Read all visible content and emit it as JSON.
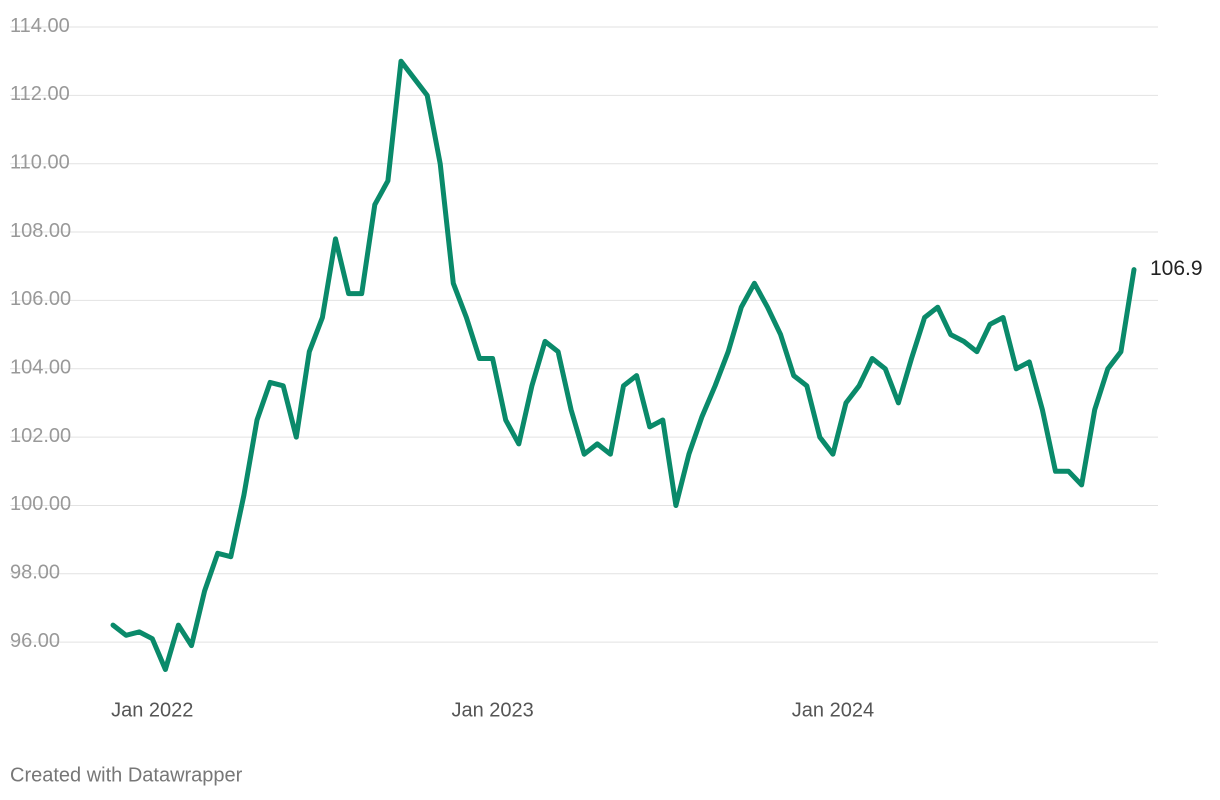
{
  "chart_data": {
    "type": "line",
    "categories": [
      null,
      null,
      null,
      "Jan 2022",
      null,
      null,
      null,
      null,
      null,
      null,
      null,
      null,
      null,
      null,
      null,
      null,
      null,
      null,
      null,
      null,
      null,
      null,
      null,
      null,
      null,
      null,
      null,
      null,
      null,
      "Jan 2023",
      null,
      null,
      null,
      null,
      null,
      null,
      null,
      null,
      null,
      null,
      null,
      null,
      null,
      null,
      null,
      null,
      null,
      null,
      null,
      null,
      null,
      null,
      null,
      null,
      null,
      "Jan 2024",
      null,
      null,
      null,
      null,
      null,
      null,
      null,
      null,
      null,
      null,
      null,
      null,
      null,
      null,
      null,
      null,
      null,
      null,
      null,
      null,
      null,
      null,
      null
    ],
    "values": [
      96.5,
      96.2,
      96.3,
      96.1,
      95.2,
      96.5,
      95.9,
      97.5,
      98.6,
      98.5,
      100.3,
      102.5,
      103.6,
      103.5,
      102.0,
      104.5,
      105.5,
      107.8,
      106.2,
      106.2,
      108.8,
      109.5,
      113.0,
      112.5,
      112.0,
      110.0,
      106.5,
      105.5,
      104.3,
      104.3,
      102.5,
      101.8,
      103.5,
      104.8,
      104.5,
      102.8,
      101.5,
      101.8,
      101.5,
      103.5,
      103.8,
      102.3,
      102.5,
      100.0,
      101.5,
      102.6,
      103.5,
      104.5,
      105.8,
      106.5,
      105.8,
      105.0,
      103.8,
      103.5,
      102.0,
      101.5,
      103.0,
      103.5,
      104.3,
      104.0,
      103.0,
      104.3,
      105.5,
      105.8,
      105.0,
      104.8,
      104.5,
      105.3,
      105.5,
      104.0,
      104.2,
      102.8,
      101.0,
      101.0,
      100.6,
      102.8,
      104.0,
      104.5,
      106.9
    ],
    "color": "#0a8a6a",
    "ylim": [
      94.6,
      114
    ],
    "yticks": [
      {
        "value": 96,
        "label": "96.00"
      },
      {
        "value": 98,
        "label": "98.00"
      },
      {
        "value": 100,
        "label": "100.00"
      },
      {
        "value": 102,
        "label": "102.00"
      },
      {
        "value": 104,
        "label": "104.00"
      },
      {
        "value": 106,
        "label": "106.00"
      },
      {
        "value": 108,
        "label": "108.00"
      },
      {
        "value": 110,
        "label": "110.00"
      },
      {
        "value": 112,
        "label": "112.00"
      },
      {
        "value": 114,
        "label": "114.00"
      }
    ],
    "grid": true,
    "credit": "Created with Datawrapper"
  }
}
